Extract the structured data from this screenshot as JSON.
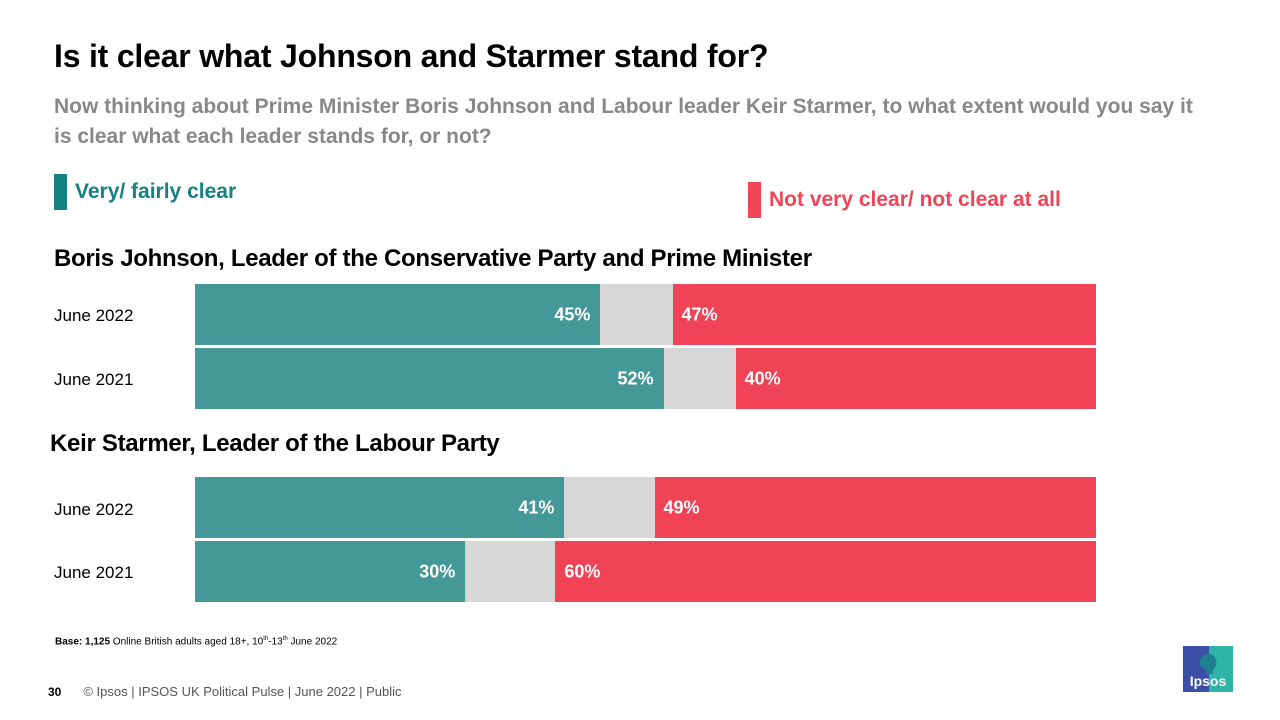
{
  "header": {
    "title": "Is it clear what Johnson and Starmer stand for?",
    "subtitle": "Now thinking about Prime Minister Boris Johnson and Labour leader Keir Starmer, to what extent would you say it is clear what each leader stands for, or not?"
  },
  "colors": {
    "clear": "#449898",
    "clear_legend": "#148282",
    "neither": "#d7d7d7",
    "not_clear": "#f04355"
  },
  "chart_data": {
    "type": "bar",
    "orientation": "horizontal-stacked",
    "title": "Is it clear what Johnson and Starmer stand for?",
    "legend": {
      "clear": "Very/ fairly clear",
      "not_clear": "Not very clear/ not clear at all"
    },
    "groups": [
      {
        "name": "Boris Johnson, Leader of the Conservative Party and Prime Minister",
        "rows": [
          {
            "label": "June 2022",
            "clear": 45,
            "neither": 8,
            "not_clear": 47
          },
          {
            "label": "June 2021",
            "clear": 52,
            "neither": 8,
            "not_clear": 40
          }
        ]
      },
      {
        "name": "Keir Starmer, Leader of the Labour Party",
        "rows": [
          {
            "label": "June 2022",
            "clear": 41,
            "neither": 10,
            "not_clear": 49
          },
          {
            "label": "June 2021",
            "clear": 30,
            "neither": 10,
            "not_clear": 60
          }
        ]
      }
    ],
    "xlim": [
      0,
      100
    ]
  },
  "base_note": {
    "label": "Base:",
    "count": "1,125",
    "text": " Online British adults aged 18+, 10",
    "sup1": "th",
    "mid": "-13",
    "sup2": "th",
    "end": " June 2022"
  },
  "footer": {
    "page_number": "30",
    "text": "© Ipsos | IPSOS UK Political Pulse | June 2022 | Public"
  },
  "logo": {
    "text": "Ipsos"
  }
}
